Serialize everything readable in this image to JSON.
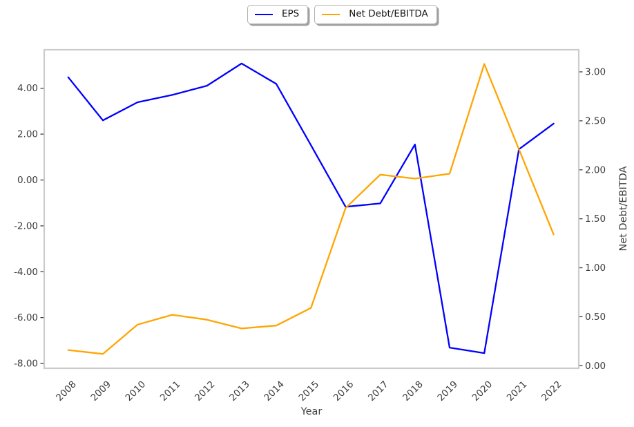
{
  "chart_data": {
    "type": "line",
    "title": "",
    "xlabel": "Year",
    "x": [
      2008,
      2009,
      2010,
      2011,
      2012,
      2013,
      2014,
      2015,
      2016,
      2017,
      2018,
      2019,
      2020,
      2021,
      2022
    ],
    "x_tick_labels": [
      "2008",
      "2009",
      "2010",
      "2011",
      "2012",
      "2013",
      "2014",
      "2015",
      "2016",
      "2017",
      "2018",
      "2019",
      "2020",
      "2021",
      "2022"
    ],
    "series": [
      {
        "name": "EPS",
        "axis": "left",
        "color": "#0000ff",
        "values": [
          4.48,
          2.6,
          3.39,
          3.71,
          4.11,
          5.08,
          4.19,
          1.52,
          -1.17,
          -1.02,
          1.55,
          -7.31,
          -7.55,
          1.34,
          2.46
        ]
      },
      {
        "name": "Net Debt/EBITDA",
        "axis": "right",
        "color": "#ffa500",
        "values": [
          0.16,
          0.12,
          0.42,
          0.52,
          0.47,
          0.38,
          0.41,
          0.59,
          1.61,
          1.95,
          1.91,
          1.96,
          3.08,
          2.21,
          1.34
        ]
      }
    ],
    "left_axis": {
      "label": "",
      "tick_labels": [
        "4.00",
        "2.00",
        "0.00",
        "-2.00",
        "-4.00",
        "-6.00",
        "-8.00"
      ],
      "tick_values": [
        4,
        2,
        0,
        -2,
        -4,
        -6,
        -8
      ],
      "range": [
        -8.3,
        5.72
      ]
    },
    "right_axis": {
      "label": "Net Debt/EBITDA",
      "tick_labels": [
        "3.00",
        "2.50",
        "2.00",
        "1.50",
        "1.00",
        "0.50",
        "0.00"
      ],
      "tick_values": [
        3,
        2.5,
        2,
        1.5,
        1,
        0.5,
        0
      ],
      "range": [
        -0.03,
        3.23
      ]
    },
    "legend": {
      "position": "upper center",
      "entries": [
        {
          "label": "EPS",
          "color": "#0000ff"
        },
        {
          "label": "Net Debt/EBITDA",
          "color": "#ffa500"
        }
      ]
    },
    "grid": false
  },
  "colors": {
    "spine": "#cbcbcb",
    "tick_text": "#3d3d3d",
    "background": "#ffffff"
  }
}
